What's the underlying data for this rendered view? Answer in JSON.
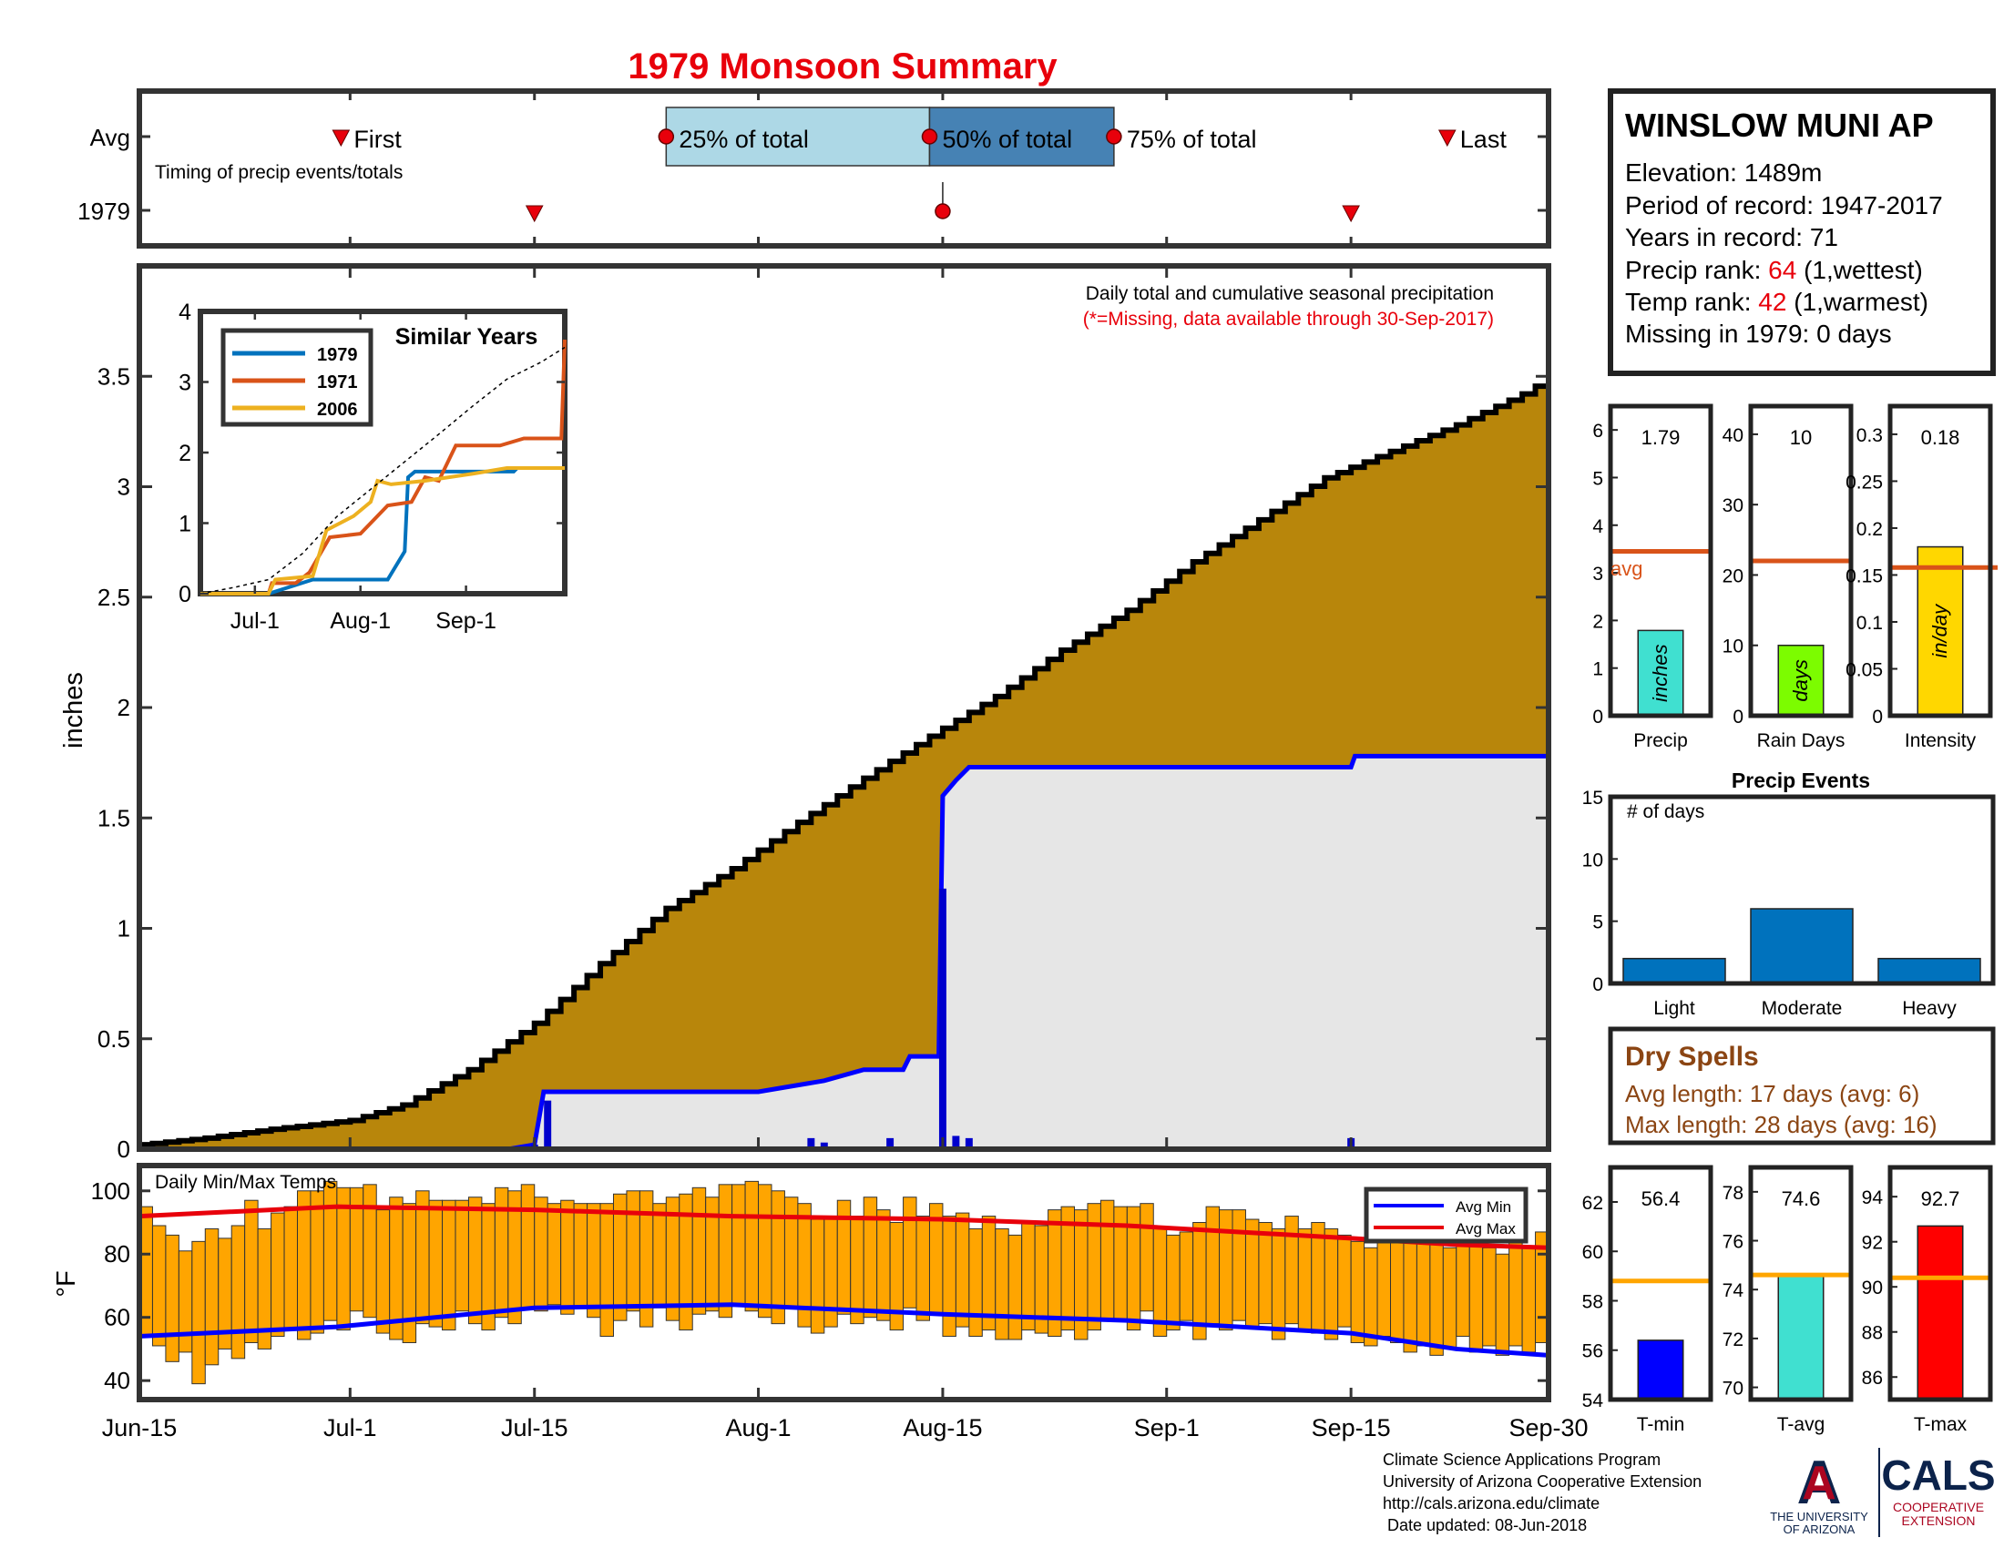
{
  "title": "1979 Monsoon Summary",
  "timing": {
    "row_avg": "Avg",
    "row_year": "1979",
    "caption": "Timing of precip events/totals",
    "first_label": "First",
    "last_label": "Last",
    "pct25_label": "25% of total",
    "pct50_label": "50% of total",
    "pct75_label": "75% of total",
    "avg_first_day": 16,
    "avg_25_day": 40,
    "avg_50_day": 60,
    "avg_75_day": 74,
    "avg_last_day": 100,
    "year_first_day": 30,
    "year_50_day": 61,
    "year_last_day": 92,
    "colors": {
      "marker": "#e8000b",
      "box_light": "#add8e6",
      "box_dark": "#4682b4"
    }
  },
  "station": {
    "name": "WINSLOW MUNI AP",
    "elevation_line": "Elevation: 1489m",
    "period_line": "Period of record: 1947-2017",
    "years_line": "Years in record: 71",
    "precip_rank_prefix": "Precip rank: ",
    "precip_rank_value": "64",
    "precip_rank_suffix": " (1,wettest)",
    "temp_rank_prefix": "Temp rank: ",
    "temp_rank_value": "42",
    "temp_rank_suffix": " (1,warmest)",
    "missing_line": "Missing in 1979: 0 days"
  },
  "main_notes": {
    "line1": "Daily total and cumulative seasonal precipitation",
    "line2": "(*=Missing, data available through 30-Sep-2017)"
  },
  "axes": {
    "precip_ylabel": "inches",
    "temp_ylabel": "°F",
    "temp_title": "Daily Min/Max Temps",
    "date_ticks": [
      {
        "label": "Jun-15",
        "day": 0
      },
      {
        "label": "Jul-1",
        "day": 16
      },
      {
        "label": "Jul-15",
        "day": 30
      },
      {
        "label": "Aug-1",
        "day": 47
      },
      {
        "label": "Aug-15",
        "day": 61
      },
      {
        "label": "Sep-1",
        "day": 78
      },
      {
        "label": "Sep-15",
        "day": 92
      },
      {
        "label": "Sep-30",
        "day": 107
      }
    ]
  },
  "inset": {
    "title": "Similar Years",
    "x_ticks": [
      "Jul-1",
      "Aug-1",
      "Sep-1"
    ],
    "legend": [
      "1979",
      "1971",
      "2006"
    ]
  },
  "side": {
    "avg_label": "avg",
    "precip_value": "1.79",
    "raindays_value": "10",
    "intensity_value": "0.18",
    "precip_unit": "inches",
    "raindays_unit": "days",
    "intensity_unit": "in/day",
    "precip_name": "Precip",
    "raindays_name": "Rain Days",
    "intensity_name": "Intensity",
    "events_title": "Precip Events",
    "events_ylabel": "# of days",
    "events_categories": [
      "Light",
      "Moderate",
      "Heavy"
    ],
    "dry_title": "Dry Spells",
    "dry_avg": "Avg length: 17 days (avg: 6)",
    "dry_max": "Max length: 28 days (avg: 16)",
    "tmin_value": "56.4",
    "tavg_value": "74.6",
    "tmax_value": "92.7",
    "tmin_name": "T-min",
    "tavg_name": "T-avg",
    "tmax_name": "T-max"
  },
  "footer": {
    "line1": "Climate Science Applications Program",
    "line2": "University of Arizona Cooperative Extension",
    "line3": "http://cals.arizona.edu/climate",
    "line4": " Date updated: 08-Jun-2018",
    "logo_ua_line1": "THE UNIVERSITY",
    "logo_ua_line2": "OF ARIZONA",
    "logo_cals": "CALS",
    "logo_coop1": "COOPERATIVE",
    "logo_coop2": "EXTENSION"
  },
  "chart_data": [
    {
      "type": "area",
      "name": "daily and cumulative precipitation",
      "x_unit": "days since Jun-15",
      "ylim": [
        0,
        4.0
      ],
      "yticks": [
        0,
        0.5,
        1,
        1.5,
        2,
        2.5,
        3,
        3.5
      ],
      "avg_cumulative": [
        [
          0,
          0.02
        ],
        [
          5,
          0.05
        ],
        [
          10,
          0.09
        ],
        [
          16,
          0.13
        ],
        [
          20,
          0.2
        ],
        [
          25,
          0.36
        ],
        [
          30,
          0.57
        ],
        [
          35,
          0.84
        ],
        [
          40,
          1.09
        ],
        [
          45,
          1.27
        ],
        [
          50,
          1.48
        ],
        [
          55,
          1.68
        ],
        [
          60,
          1.87
        ],
        [
          65,
          2.05
        ],
        [
          70,
          2.26
        ],
        [
          75,
          2.44
        ],
        [
          80,
          2.66
        ],
        [
          85,
          2.85
        ],
        [
          90,
          3.04
        ],
        [
          95,
          3.16
        ],
        [
          100,
          3.28
        ],
        [
          105,
          3.42
        ],
        [
          107,
          3.49
        ]
      ],
      "cumulative_1979": [
        [
          0,
          0
        ],
        [
          28,
          0
        ],
        [
          30,
          0.02
        ],
        [
          30.7,
          0.26
        ],
        [
          47,
          0.26
        ],
        [
          52,
          0.31
        ],
        [
          55,
          0.36
        ],
        [
          58,
          0.36
        ],
        [
          58.5,
          0.42
        ],
        [
          60.7,
          0.42
        ],
        [
          61,
          1.6
        ],
        [
          62,
          1.67
        ],
        [
          63,
          1.73
        ],
        [
          86,
          1.73
        ],
        [
          92,
          1.73
        ],
        [
          92.3,
          1.78
        ],
        [
          107,
          1.78
        ]
      ],
      "daily_bars_1979": [
        {
          "day": 29,
          "value": 0.01
        },
        {
          "day": 30,
          "value": 0.02
        },
        {
          "day": 31,
          "value": 0.22
        },
        {
          "day": 51,
          "value": 0.05
        },
        {
          "day": 52,
          "value": 0.03
        },
        {
          "day": 57,
          "value": 0.05
        },
        {
          "day": 61,
          "value": 1.18
        },
        {
          "day": 62,
          "value": 0.06
        },
        {
          "day": 63,
          "value": 0.05
        },
        {
          "day": 92,
          "value": 0.05
        }
      ],
      "colors": {
        "avg_fill": "#b8860b",
        "year_fill": "#e6e6e6",
        "year_line": "#0000ff",
        "daily_bar": "#0000cd"
      }
    },
    {
      "type": "line",
      "name": "similar years inset",
      "xlim": [
        0,
        107
      ],
      "ylim": [
        0,
        4
      ],
      "yticks": [
        0,
        1,
        2,
        3,
        4
      ],
      "tick_days": [
        16,
        47,
        78
      ],
      "series": [
        {
          "name": "1979",
          "color": "#0072bd",
          "points": [
            [
              0,
              0
            ],
            [
              20,
              0
            ],
            [
              33,
              0.2
            ],
            [
              55,
              0.2
            ],
            [
              60,
              0.6
            ],
            [
              61,
              1.65
            ],
            [
              63,
              1.73
            ],
            [
              92,
              1.73
            ],
            [
              93,
              1.78
            ],
            [
              107,
              1.78
            ]
          ]
        },
        {
          "name": "1971",
          "color": "#d95319",
          "points": [
            [
              0,
              0
            ],
            [
              20,
              0
            ],
            [
              21,
              0.15
            ],
            [
              28,
              0.15
            ],
            [
              32,
              0.3
            ],
            [
              38,
              0.8
            ],
            [
              47,
              0.85
            ],
            [
              55,
              1.25
            ],
            [
              62,
              1.3
            ],
            [
              66,
              1.65
            ],
            [
              70,
              1.6
            ],
            [
              75,
              2.1
            ],
            [
              80,
              2.1
            ],
            [
              88,
              2.1
            ],
            [
              95,
              2.2
            ],
            [
              106,
              2.2
            ],
            [
              107,
              3.6
            ]
          ]
        },
        {
          "name": "2006",
          "color": "#edb120",
          "points": [
            [
              0,
              0
            ],
            [
              20,
              0
            ],
            [
              22,
              0.2
            ],
            [
              33,
              0.25
            ],
            [
              37,
              0.9
            ],
            [
              45,
              1.1
            ],
            [
              50,
              1.3
            ],
            [
              52,
              1.6
            ],
            [
              56,
              1.55
            ],
            [
              66,
              1.6
            ],
            [
              80,
              1.7
            ],
            [
              90,
              1.78
            ],
            [
              107,
              1.78
            ]
          ]
        },
        {
          "name": "Avg",
          "dashed": true,
          "color": "#000000",
          "points": [
            [
              0,
              0
            ],
            [
              10,
              0.09
            ],
            [
              20,
              0.2
            ],
            [
              30,
              0.57
            ],
            [
              40,
              1.09
            ],
            [
              50,
              1.48
            ],
            [
              60,
              1.87
            ],
            [
              70,
              2.26
            ],
            [
              80,
              2.66
            ],
            [
              90,
              3.04
            ],
            [
              100,
              3.28
            ],
            [
              107,
              3.49
            ]
          ]
        }
      ]
    },
    {
      "type": "bar",
      "name": "daily min/max temps",
      "ylim": [
        34,
        108
      ],
      "yticks": [
        40,
        60,
        80,
        100
      ],
      "legend": [
        "Avg Min",
        "Avg Max"
      ],
      "avg_min": [
        [
          0,
          54
        ],
        [
          15,
          57
        ],
        [
          30,
          63
        ],
        [
          45,
          64
        ],
        [
          61,
          61
        ],
        [
          75,
          59
        ],
        [
          92,
          55
        ],
        [
          100,
          50
        ],
        [
          107,
          48
        ]
      ],
      "avg_max": [
        [
          0,
          92
        ],
        [
          15,
          95
        ],
        [
          30,
          94
        ],
        [
          45,
          92
        ],
        [
          61,
          91
        ],
        [
          75,
          89
        ],
        [
          92,
          85
        ],
        [
          100,
          83
        ],
        [
          107,
          82
        ]
      ],
      "daily": [
        [
          54,
          95
        ],
        [
          51,
          89
        ],
        [
          46,
          86
        ],
        [
          49,
          81
        ],
        [
          39,
          84
        ],
        [
          45,
          88
        ],
        [
          50,
          85
        ],
        [
          47,
          89
        ],
        [
          52,
          97
        ],
        [
          50,
          88
        ],
        [
          54,
          93
        ],
        [
          56,
          95
        ],
        [
          53,
          100
        ],
        [
          55,
          100
        ],
        [
          59,
          103
        ],
        [
          56,
          101
        ],
        [
          62,
          101
        ],
        [
          60,
          102
        ],
        [
          55,
          94
        ],
        [
          53,
          98
        ],
        [
          52,
          96
        ],
        [
          58,
          100
        ],
        [
          57,
          97
        ],
        [
          56,
          97
        ],
        [
          62,
          97
        ],
        [
          58,
          98
        ],
        [
          56,
          96
        ],
        [
          60,
          101
        ],
        [
          58,
          100
        ],
        [
          63,
          102
        ],
        [
          62,
          98
        ],
        [
          64,
          96
        ],
        [
          61,
          97
        ],
        [
          63,
          96
        ],
        [
          60,
          96
        ],
        [
          54,
          96
        ],
        [
          59,
          99
        ],
        [
          62,
          100
        ],
        [
          57,
          100
        ],
        [
          63,
          96
        ],
        [
          59,
          98
        ],
        [
          56,
          99
        ],
        [
          61,
          101
        ],
        [
          62,
          98
        ],
        [
          60,
          102
        ],
        [
          64,
          102
        ],
        [
          62,
          103
        ],
        [
          60,
          102
        ],
        [
          58,
          100
        ],
        [
          63,
          98
        ],
        [
          57,
          96
        ],
        [
          55,
          91
        ],
        [
          57,
          91
        ],
        [
          61,
          97
        ],
        [
          58,
          92
        ],
        [
          60,
          98
        ],
        [
          59,
          94
        ],
        [
          56,
          90
        ],
        [
          63,
          98
        ],
        [
          59,
          92
        ],
        [
          61,
          96
        ],
        [
          54,
          92
        ],
        [
          57,
          93
        ],
        [
          54,
          88
        ],
        [
          56,
          92
        ],
        [
          53,
          88
        ],
        [
          53,
          86
        ],
        [
          56,
          90
        ],
        [
          55,
          89
        ],
        [
          54,
          94
        ],
        [
          56,
          95
        ],
        [
          53,
          94
        ],
        [
          56,
          96
        ],
        [
          59,
          97
        ],
        [
          59,
          95
        ],
        [
          56,
          95
        ],
        [
          62,
          96
        ],
        [
          54,
          88
        ],
        [
          56,
          86
        ],
        [
          59,
          87
        ],
        [
          53,
          90
        ],
        [
          58,
          95
        ],
        [
          56,
          94
        ],
        [
          59,
          94
        ],
        [
          57,
          91
        ],
        [
          58,
          90
        ],
        [
          53,
          88
        ],
        [
          58,
          92
        ],
        [
          56,
          88
        ],
        [
          55,
          90
        ],
        [
          53,
          88
        ],
        [
          57,
          86
        ],
        [
          52,
          84
        ],
        [
          51,
          82
        ],
        [
          54,
          86
        ],
        [
          52,
          84
        ],
        [
          49,
          86
        ],
        [
          51,
          86
        ],
        [
          48,
          84
        ],
        [
          50,
          82
        ],
        [
          54,
          84
        ],
        [
          49,
          86
        ],
        [
          51,
          82
        ],
        [
          48,
          80
        ],
        [
          51,
          84
        ],
        [
          49,
          82
        ],
        [
          52,
          87
        ]
      ],
      "colors": {
        "bar": "#ffa500",
        "min_line": "#0000ff",
        "max_line": "#e8000b"
      }
    },
    {
      "type": "bar",
      "name": "season totals",
      "panels": [
        {
          "label": "Precip",
          "value": 1.79,
          "avg": 3.45,
          "ylim": [
            0,
            6.5
          ],
          "yticks": [
            0,
            1,
            2,
            3,
            4,
            5,
            6
          ],
          "color": "#40e0d0"
        },
        {
          "label": "Rain Days",
          "value": 10,
          "avg": 22,
          "ylim": [
            0,
            44
          ],
          "yticks": [
            0,
            10,
            20,
            30,
            40
          ],
          "color": "#7cfc00"
        },
        {
          "label": "Intensity",
          "value": 0.18,
          "avg": 0.158,
          "ylim": [
            0,
            0.33
          ],
          "yticks": [
            0,
            0.05,
            0.1,
            0.15,
            0.2,
            0.25,
            0.3
          ],
          "color": "#ffd700"
        }
      ]
    },
    {
      "type": "bar",
      "name": "precip events",
      "categories": [
        "Light",
        "Moderate",
        "Heavy"
      ],
      "values": [
        2,
        6,
        2
      ],
      "ylim": [
        0,
        15
      ],
      "yticks": [
        0,
        5,
        10,
        15
      ],
      "color": "#0072bd"
    },
    {
      "type": "bar",
      "name": "season temperatures",
      "panels": [
        {
          "label": "T-min",
          "value": 56.4,
          "avg": 58.8,
          "ylim": [
            54,
            63.4
          ],
          "yticks": [
            54,
            56,
            58,
            60,
            62
          ],
          "color": "#0000ff"
        },
        {
          "label": "T-avg",
          "value": 74.6,
          "avg": 74.6,
          "ylim": [
            69.5,
            79
          ],
          "yticks": [
            70,
            72,
            74,
            76,
            78
          ],
          "color": "#40e0d0"
        },
        {
          "label": "T-max",
          "value": 92.7,
          "avg": 90.4,
          "ylim": [
            85,
            95.3
          ],
          "yticks": [
            86,
            88,
            90,
            92,
            94
          ],
          "color": "#ff0000"
        }
      ]
    }
  ]
}
